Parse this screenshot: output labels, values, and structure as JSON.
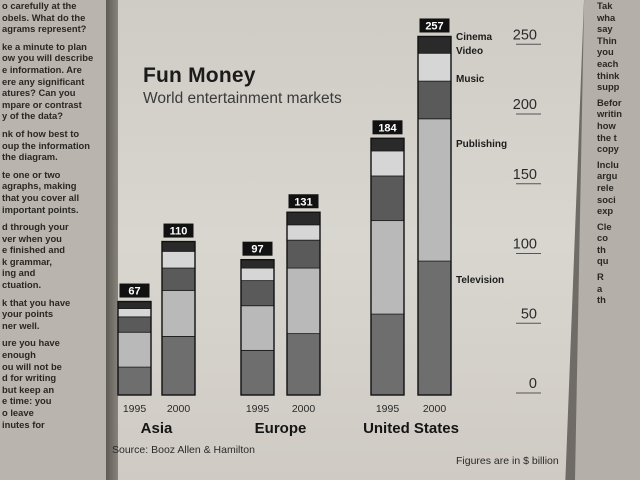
{
  "left_text": [
    "o carefully at the",
    "obels. What do the",
    "agrams represent?",
    "ke a minute to plan",
    "ow you will describe",
    "e information. Are",
    "ere any significant",
    "atures? Can you",
    "mpare or contrast",
    "y of the data?",
    "nk of how best to",
    "oup the information",
    "the diagram.",
    "te one or two",
    "agraphs, making",
    "that you cover all",
    "important points.",
    "d through your",
    "ver when you",
    "e finished and",
    "k grammar,",
    "ing and",
    "ctuation.",
    "k that you have",
    "your points",
    "ner well.",
    "ure you have",
    "enough",
    "ou will not be",
    "d for writing",
    "but keep an",
    "e time: you",
    "o leave",
    "inutes for"
  ],
  "right_text": [
    "Tak",
    "wha",
    "say",
    "Thin",
    "you",
    "each",
    "think",
    "supp",
    "Befor",
    "writin",
    "how",
    "the t",
    "copy",
    "Inclu",
    "argu",
    "rele",
    "soci",
    "exp",
    "Cle",
    "co",
    "th",
    "qu",
    "R",
    "a",
    "th"
  ],
  "chart_data": {
    "type": "bar",
    "stacked": true,
    "title": "Fun Money",
    "subtitle": "World entertainment markets",
    "source": "Source: Booz Allen & Hamilton",
    "units_note": "Figures are in $ billion",
    "ylim": [
      0,
      260
    ],
    "yticks": [
      0,
      50,
      100,
      150,
      200,
      250
    ],
    "grid": false,
    "segments": [
      "Television",
      "Publishing",
      "Music",
      "Video",
      "Cinema"
    ],
    "segment_colors": [
      "#6e6e6e",
      "#b9b9b9",
      "#5a5a5a",
      "#d6d6d6",
      "#2a2a2a"
    ],
    "groups": [
      {
        "region": "Asia",
        "bars": [
          {
            "year": "1995",
            "total": 67,
            "values": [
              20,
              25,
              11,
              6,
              5
            ]
          },
          {
            "year": "2000",
            "total": 110,
            "values": [
              42,
              33,
              16,
              12,
              7
            ]
          }
        ]
      },
      {
        "region": "Europe",
        "bars": [
          {
            "year": "1995",
            "total": 97,
            "values": [
              32,
              32,
              18,
              9,
              6
            ]
          },
          {
            "year": "2000",
            "total": 131,
            "values": [
              44,
              47,
              20,
              11,
              9
            ]
          }
        ]
      },
      {
        "region": "United States",
        "bars": [
          {
            "year": "1995",
            "total": 184,
            "values": [
              58,
              67,
              32,
              18,
              9
            ]
          },
          {
            "year": "2000",
            "total": 257,
            "values": [
              96,
              102,
              27,
              20,
              12
            ]
          }
        ]
      }
    ],
    "segment_labels_on_bar": {
      "region": "United States",
      "year": "2000"
    },
    "segment_label_text": {
      "Cinema": "Cinema",
      "Video": "Video",
      "Music": "Music",
      "Publishing": "Publishing",
      "Television": "Television"
    }
  }
}
